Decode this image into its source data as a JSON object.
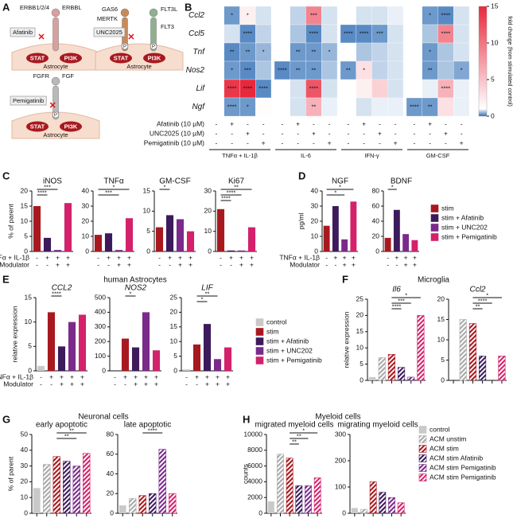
{
  "panels": [
    "A",
    "B",
    "C",
    "D",
    "E",
    "F",
    "G",
    "H"
  ],
  "diagram": {
    "cells": [
      {
        "receptors": [
          "ERBB1/2/4"
        ],
        "ligands": [
          "ERBBL"
        ],
        "inhibitor": "Afatinib",
        "nodes": [
          "STAT",
          "PI3K"
        ],
        "cell": "Astrocyte"
      },
      {
        "receptors": [
          "MERTK",
          "FLT3"
        ],
        "ligands": [
          "GAS6",
          "FLT3L"
        ],
        "inhibitor": "UNC2025",
        "phospho": "P",
        "nodes": [
          "STAT",
          "PI3K"
        ],
        "cell": "Astrocyte"
      },
      {
        "receptors": [
          "FGFR"
        ],
        "ligands": [
          "FGF"
        ],
        "inhibitor": "Pemigatinib",
        "phospho": "P",
        "nodes": [
          "STAT",
          "PI3K"
        ],
        "cell": "Astrocyte"
      }
    ]
  },
  "chart_data": [
    {
      "type": "heatmap",
      "rows": [
        "Ccl2",
        "Ccl5",
        "Tnf",
        "Nos2",
        "Lif",
        "Ngf"
      ],
      "values": [
        [
          1,
          0.3,
          2,
          0.8,
          1,
          0.7,
          9,
          0.8,
          1,
          0.8,
          0.8,
          0.9,
          1,
          0.3,
          0.2,
          0.8
        ],
        [
          1,
          0.8,
          0.2,
          0.7,
          1,
          0.6,
          0.2,
          0.8,
          0.2,
          0.2,
          0.3,
          0.8,
          1,
          0.6,
          9,
          0.8
        ],
        [
          1,
          0.2,
          0.3,
          0.5,
          1,
          0.3,
          0.3,
          0.5,
          1,
          0.6,
          0.7,
          0.8,
          1,
          0.3,
          0.6,
          0.8
        ],
        [
          1,
          0.3,
          0.2,
          0.6,
          0.2,
          0.3,
          0.3,
          0.6,
          0.3,
          3,
          0.7,
          0.8,
          1,
          0.3,
          0.6,
          0.4
        ],
        [
          1,
          14,
          15,
          0.2,
          1,
          0.8,
          12,
          0.8,
          1,
          2,
          4,
          0.8,
          1,
          0.9,
          6,
          0.9
        ],
        [
          1,
          0.3,
          0.3,
          1.2,
          1,
          0.8,
          6,
          0.9,
          1,
          0.8,
          0.9,
          0.9,
          0.3,
          0.3,
          3,
          0.9
        ]
      ],
      "cell_labels": [
        [
          null,
          "*",
          "*",
          null,
          null,
          null,
          "***",
          null,
          null,
          null,
          null,
          null,
          null,
          "*",
          "****",
          null
        ],
        [
          null,
          null,
          "****",
          null,
          null,
          null,
          "****",
          null,
          "****",
          "****",
          "***",
          null,
          null,
          null,
          "****",
          null
        ],
        [
          null,
          "**",
          "**",
          "*",
          null,
          "**",
          "**",
          "*",
          null,
          null,
          null,
          null,
          null,
          "*",
          null,
          null
        ],
        [
          null,
          "*",
          "***",
          null,
          "****",
          "**",
          "**",
          null,
          "**",
          "*",
          null,
          null,
          null,
          "**",
          null,
          "*"
        ],
        [
          null,
          "****",
          "****",
          "****",
          null,
          null,
          "****",
          null,
          null,
          null,
          null,
          null,
          null,
          null,
          "****",
          null
        ],
        [
          null,
          "****",
          "*",
          null,
          null,
          null,
          "**",
          null,
          null,
          null,
          null,
          null,
          "****",
          "**",
          null,
          null
        ]
      ],
      "treatments": [
        {
          "name": "Afatinib (10 µM)",
          "signs": [
            "-",
            "+",
            "-",
            "-",
            "-",
            "+",
            "-",
            "-",
            "-",
            "+",
            "-",
            "-",
            "-",
            "+",
            "-",
            "-"
          ]
        },
        {
          "name": "UNC2025 (10 µM)",
          "signs": [
            "-",
            "-",
            "+",
            "-",
            "-",
            "-",
            "+",
            "-",
            "-",
            "-",
            "+",
            "-",
            "-",
            "-",
            "+",
            "-"
          ]
        },
        {
          "name": "Pemigatinib (10 µM)",
          "signs": [
            "-",
            "-",
            "-",
            "+",
            "-",
            "-",
            "-",
            "+",
            "-",
            "-",
            "-",
            "+",
            "-",
            "-",
            "-",
            "+"
          ]
        }
      ],
      "groups": [
        "TNFα + IL-1β",
        "IL-6",
        "IFN-γ",
        "GM-CSF"
      ],
      "colorbar_label": "fold change (from stimulated control)",
      "zlim": [
        0,
        15
      ],
      "zticks": [
        0,
        5,
        10,
        15
      ],
      "colors": [
        "#2f6db5",
        "#ffffff",
        "#e8283c"
      ],
      "color_center": 1
    },
    {
      "type": "bar",
      "title": "iNOS",
      "ylabel": "% of parent",
      "values": [
        15,
        4.5,
        0.5,
        16
      ],
      "colors": [
        "#a8191f",
        "#3d1a5c",
        "#7a2a8a",
        "#d3216b"
      ],
      "ylim": [
        0,
        20
      ],
      "yticks": [
        0,
        5,
        10,
        15,
        20
      ],
      "condition_labels": [
        "TNFα + IL-1β",
        "Modulator"
      ],
      "conditions": [
        [
          "-",
          "+",
          "+",
          "+"
        ],
        [
          "-",
          "-",
          "+",
          "+"
        ]
      ],
      "comparisons": [
        {
          "groups": [
            0,
            2
          ],
          "label": "***"
        },
        {
          "groups": [
            0,
            1
          ],
          "label": "****"
        }
      ]
    },
    {
      "type": "bar",
      "title": "TNFα",
      "values": [
        11,
        12,
        1,
        22
      ],
      "colors": [
        "#a8191f",
        "#3d1a5c",
        "#7a2a8a",
        "#d3216b"
      ],
      "ylim": [
        0,
        40
      ],
      "yticks": [
        0,
        10,
        20,
        30,
        40
      ],
      "conditions": [
        [
          "-",
          "+",
          "+",
          "+"
        ],
        [
          "-",
          "-",
          "+",
          "+"
        ]
      ],
      "comparisons": [
        {
          "groups": [
            0,
            3
          ],
          "label": "*"
        },
        {
          "groups": [
            0,
            2
          ],
          "label": "***"
        }
      ]
    },
    {
      "type": "bar",
      "title": "GM-CSF",
      "values": [
        6,
        9,
        8,
        5
      ],
      "colors": [
        "#a8191f",
        "#3d1a5c",
        "#7a2a8a",
        "#d3216b"
      ],
      "ylim": [
        0,
        15
      ],
      "yticks": [
        0,
        5,
        10,
        15
      ],
      "conditions": [
        [
          "-",
          "+",
          "+",
          "+"
        ],
        [
          "-",
          "-",
          "+",
          "+"
        ]
      ],
      "comparisons": [
        {
          "groups": [
            0,
            1
          ],
          "label": "*"
        }
      ]
    },
    {
      "type": "bar",
      "title": "Ki67",
      "values": [
        21,
        0.5,
        0.5,
        12
      ],
      "colors": [
        "#a8191f",
        "#3d1a5c",
        "#7a2a8a",
        "#d3216b"
      ],
      "ylim": [
        0,
        30
      ],
      "yticks": [
        0,
        10,
        20,
        30
      ],
      "conditions": [
        [
          "-",
          "+",
          "+",
          "+"
        ],
        [
          "-",
          "-",
          "+",
          "+"
        ]
      ],
      "comparisons": [
        {
          "groups": [
            0,
            3
          ],
          "label": "**"
        },
        {
          "groups": [
            0,
            2
          ],
          "label": "****"
        },
        {
          "groups": [
            0,
            1
          ],
          "label": "****"
        }
      ]
    },
    {
      "type": "bar",
      "title": "NGF",
      "ylabel": "pg/ml",
      "values": [
        17,
        30,
        8,
        33
      ],
      "colors": [
        "#a8191f",
        "#3d1a5c",
        "#7a2a8a",
        "#d3216b"
      ],
      "ylim": [
        0,
        40
      ],
      "yticks": [
        0,
        10,
        20,
        30,
        40
      ],
      "condition_labels": [
        "TNFα + IL-1β",
        "Modulator"
      ],
      "conditions": [
        [
          "-",
          "+",
          "+",
          "+"
        ],
        [
          "-",
          "-",
          "+",
          "+"
        ]
      ],
      "comparisons": [
        {
          "groups": [
            0,
            3
          ],
          "label": "*"
        },
        {
          "groups": [
            0,
            2
          ],
          "label": "*"
        }
      ]
    },
    {
      "type": "bar",
      "title": "BDNF",
      "values": [
        18,
        55,
        23,
        15
      ],
      "colors": [
        "#a8191f",
        "#3d1a5c",
        "#7a2a8a",
        "#d3216b"
      ],
      "ylim": [
        0,
        80
      ],
      "yticks": [
        0,
        20,
        40,
        60,
        80
      ],
      "conditions": [
        [
          "-",
          "+",
          "+",
          "+"
        ],
        [
          "-",
          "-",
          "+",
          "+"
        ]
      ],
      "comparisons": [
        {
          "groups": [
            0,
            1
          ],
          "label": "*"
        }
      ],
      "legend": {
        "labels": [
          "stim",
          "stim + Afatinib",
          "stim + UNC202",
          "stim + Pemigatinib"
        ],
        "colors": [
          "#a8191f",
          "#3d1a5c",
          "#7a2a8a",
          "#d3216b"
        ]
      }
    },
    {
      "type": "bar",
      "group_title": "human Astrocytes",
      "title": "CCL2",
      "title_style": "italic",
      "ylabel": "relative expression",
      "values": [
        1,
        12,
        5,
        10,
        11.5
      ],
      "colors": [
        "#c9c9c9",
        "#a8191f",
        "#3d1a5c",
        "#7a2a8a",
        "#d3216b"
      ],
      "ylim": [
        0,
        15
      ],
      "yticks": [
        0,
        5,
        10,
        15
      ],
      "condition_labels": [
        "TNFα + IL-1β",
        "Modulator"
      ],
      "conditions": [
        [
          "-",
          "+",
          "+",
          "+",
          "+"
        ],
        [
          "-",
          "-",
          "+",
          "+",
          "+"
        ]
      ],
      "comparisons": [
        {
          "groups": [
            1,
            2
          ],
          "label": "****"
        }
      ]
    },
    {
      "type": "bar",
      "title": "NOS2",
      "title_style": "italic",
      "values": [
        0,
        220,
        160,
        400,
        140
      ],
      "colors": [
        "#c9c9c9",
        "#a8191f",
        "#3d1a5c",
        "#7a2a8a",
        "#d3216b"
      ],
      "ylim": [
        0,
        500
      ],
      "yticks": [
        0,
        100,
        200,
        300,
        400,
        500
      ],
      "conditions": [
        [
          "-",
          "+",
          "+",
          "+",
          "+"
        ],
        [
          "-",
          "-",
          "+",
          "+",
          "+"
        ]
      ],
      "comparisons": [
        {
          "groups": [
            1,
            2
          ],
          "label": "*"
        }
      ]
    },
    {
      "type": "bar",
      "title": "LIF",
      "title_style": "italic",
      "values": [
        0.5,
        9,
        16,
        4,
        8
      ],
      "colors": [
        "#c9c9c9",
        "#a8191f",
        "#3d1a5c",
        "#7a2a8a",
        "#d3216b"
      ],
      "ylim": [
        0,
        25
      ],
      "yticks": [
        0,
        5,
        10,
        15,
        20,
        25
      ],
      "conditions": [
        [
          "-",
          "+",
          "+",
          "+",
          "+"
        ],
        [
          "-",
          "-",
          "+",
          "+",
          "+"
        ]
      ],
      "comparisons": [
        {
          "groups": [
            1,
            3
          ],
          "label": "**"
        },
        {
          "groups": [
            1,
            2
          ],
          "label": "*"
        }
      ],
      "legend": {
        "labels": [
          "control",
          "stim",
          "stim + Afatinib",
          "stim + UNC202",
          "stim + Pemigatinib"
        ],
        "colors": [
          "#c9c9c9",
          "#a8191f",
          "#3d1a5c",
          "#7a2a8a",
          "#d3216b"
        ]
      }
    },
    {
      "type": "bar",
      "group_title": "Microglia",
      "title": "Il6",
      "title_style": "italic",
      "ylabel": "relative expression",
      "values": [
        1,
        7,
        8,
        4,
        1,
        20
      ],
      "colors": [
        "#c9c9c9",
        "#a9a9a9",
        "#a8191f",
        "#3d1a5c",
        "#7a2a8a",
        "#d3216b"
      ],
      "hatch": [
        false,
        true,
        true,
        true,
        true,
        true
      ],
      "ylim": [
        0,
        25
      ],
      "yticks": [
        0,
        5,
        10,
        15,
        20,
        25
      ],
      "comparisons": [
        {
          "groups": [
            2,
            5
          ],
          "label": "*"
        },
        {
          "groups": [
            2,
            4
          ],
          "label": "***"
        },
        {
          "groups": [
            2,
            3
          ],
          "label": "****"
        }
      ]
    },
    {
      "type": "bar",
      "title": "Ccl2",
      "title_style": "italic",
      "values": [
        0,
        15,
        14,
        6,
        0,
        6
      ],
      "colors": [
        "#c9c9c9",
        "#a9a9a9",
        "#a8191f",
        "#3d1a5c",
        "#7a2a8a",
        "#d3216b"
      ],
      "hatch": [
        false,
        true,
        true,
        true,
        true,
        true
      ],
      "ylim": [
        0,
        20
      ],
      "yticks": [
        0,
        5,
        10,
        15,
        20
      ],
      "comparisons": [
        {
          "groups": [
            2,
            5
          ],
          "label": "*"
        },
        {
          "groups": [
            2,
            4
          ],
          "label": "****"
        },
        {
          "groups": [
            2,
            3
          ],
          "label": "**"
        }
      ]
    },
    {
      "type": "bar",
      "group_title": "Neuronal cells",
      "title": "early apoptotic",
      "ylabel": "% of parent",
      "values": [
        16,
        31,
        36,
        33,
        30,
        38
      ],
      "colors": [
        "#c9c9c9",
        "#a9a9a9",
        "#a8191f",
        "#3d1a5c",
        "#7a2a8a",
        "#d3216b"
      ],
      "hatch": [
        false,
        true,
        true,
        true,
        true,
        true
      ],
      "ylim": [
        0,
        50
      ],
      "yticks": [
        0,
        10,
        20,
        30,
        40,
        50
      ],
      "comparisons": [
        {
          "groups": [
            2,
            5
          ],
          "label": "**"
        },
        {
          "groups": [
            2,
            4
          ],
          "label": "**"
        }
      ]
    },
    {
      "type": "bar",
      "title": "late apoptotic",
      "values": [
        8,
        15,
        18,
        20,
        65,
        20
      ],
      "colors": [
        "#c9c9c9",
        "#a9a9a9",
        "#a8191f",
        "#3d1a5c",
        "#7a2a8a",
        "#d3216b"
      ],
      "hatch": [
        false,
        true,
        true,
        true,
        true,
        true
      ],
      "ylim": [
        0,
        80
      ],
      "yticks": [
        0,
        20,
        40,
        60,
        80
      ],
      "comparisons": [
        {
          "groups": [
            2,
            4
          ],
          "label": "****"
        }
      ]
    },
    {
      "type": "bar",
      "group_title": "Myeloid cells",
      "title": "migrated myeloid cells",
      "ylabel": "counts",
      "values": [
        1500,
        7500,
        7000,
        3500,
        3500,
        4500
      ],
      "colors": [
        "#c9c9c9",
        "#a9a9a9",
        "#a8191f",
        "#3d1a5c",
        "#7a2a8a",
        "#d3216b"
      ],
      "hatch": [
        false,
        true,
        true,
        true,
        true,
        true
      ],
      "ylim": [
        0,
        10000
      ],
      "yticks": [
        0,
        2000,
        4000,
        6000,
        8000,
        10000
      ],
      "comparisons": [
        {
          "groups": [
            2,
            5
          ],
          "label": "*"
        },
        {
          "groups": [
            2,
            4
          ],
          "label": "**"
        },
        {
          "groups": [
            2,
            3
          ],
          "label": "**"
        }
      ]
    },
    {
      "type": "bar",
      "title": "migrating myeloid cells",
      "values": [
        20,
        15,
        120,
        80,
        60,
        40
      ],
      "colors": [
        "#c9c9c9",
        "#a9a9a9",
        "#a8191f",
        "#3d1a5c",
        "#7a2a8a",
        "#d3216b"
      ],
      "hatch": [
        false,
        true,
        true,
        true,
        true,
        true
      ],
      "ylim": [
        0,
        300
      ],
      "yticks": [
        0,
        100,
        200,
        300
      ],
      "legend": {
        "labels": [
          "control",
          "ACM unstim",
          "ACM stim",
          "ACM stim Afatinib",
          "ACM stim Pemigatinib",
          "ACM stim Pemigatinib"
        ],
        "colors": [
          "#c9c9c9",
          "#a9a9a9",
          "#a8191f",
          "#3d1a5c",
          "#7a2a8a",
          "#d3216b"
        ],
        "hatch": [
          false,
          true,
          true,
          true,
          true,
          true
        ]
      }
    }
  ]
}
